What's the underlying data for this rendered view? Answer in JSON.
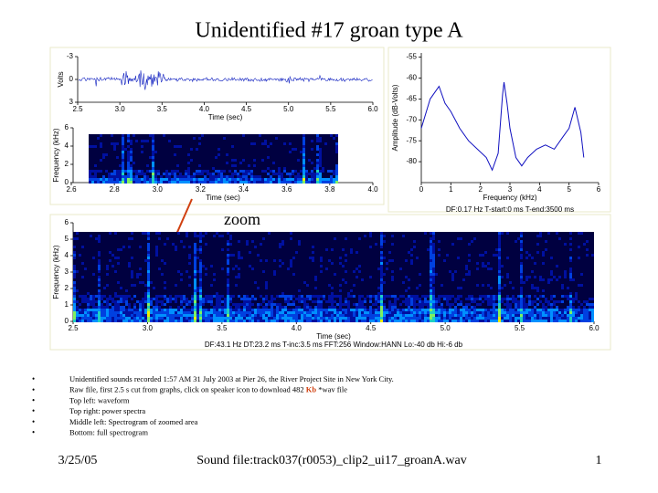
{
  "title": "Unidentified #17 groan type A",
  "waveform": {
    "y_label": "Volts",
    "yticks": [
      "3",
      "0",
      "-3"
    ],
    "x_label": "Time (sec)",
    "xticks": [
      "2.5",
      "3.0",
      "3.5",
      "4.0",
      "4.5",
      "5.0",
      "5.5",
      "6.0"
    ]
  },
  "zoom_spectrogram": {
    "y_label": "Frequency (kHz)",
    "yticks": [
      "0",
      "2",
      "4",
      "6"
    ],
    "x_label": "Time (sec)",
    "xticks": [
      "2.6",
      "2.8",
      "3.0",
      "3.2",
      "3.4",
      "3.6",
      "3.8",
      "4.0"
    ]
  },
  "zoom_label": "zoom",
  "chart_data": {
    "type": "line",
    "x_label": "Frequency (kHz)",
    "y_label": "Amplitude (dB-Volts)",
    "color": "#1010c0",
    "x": [
      0,
      0.3,
      0.6,
      0.8,
      1.0,
      1.3,
      1.6,
      1.9,
      2.2,
      2.4,
      2.6,
      2.75,
      2.8,
      2.9,
      3.0,
      3.2,
      3.4,
      3.6,
      3.9,
      4.2,
      4.5,
      4.8,
      5.0,
      5.2,
      5.4,
      5.5
    ],
    "values": [
      -72,
      -65,
      -62,
      -66,
      -68,
      -72,
      -75,
      -77,
      -79,
      -82,
      -78,
      -64,
      -61,
      -66,
      -72,
      -79,
      -81,
      -79,
      -77,
      -76,
      -77,
      -74,
      -72,
      -67,
      -73,
      -79
    ],
    "xlim": [
      0,
      6
    ],
    "ylim": [
      -85,
      -54
    ],
    "xticks": [
      0,
      1,
      2,
      3,
      4,
      5,
      6
    ],
    "yticks": [
      -55,
      -60,
      -65,
      -70,
      -75,
      -80
    ],
    "info": "DF:0.17 Hz   T-start:0 ms   T-end:3500 ms"
  },
  "full_spectrogram": {
    "y_label": "Frequency (kHz)",
    "yticks": [
      "0",
      "1",
      "2",
      "3",
      "4",
      "5",
      "6"
    ],
    "x_label": "Time (sec)",
    "xticks": [
      "2.5",
      "3.0",
      "3.5",
      "4.0",
      "4.5",
      "5.0",
      "5.5",
      "6.0"
    ],
    "info": "DF:43.1 Hz   DT:23.2 ms   T-inc:3.5 ms   FFT:256   Window:HANN   Lo:-40 db   Hi:-6 db"
  },
  "bullets": [
    [
      "Unidentified sounds recorded 1:57 AM 31 July 2003 at Pier 26, the River Project Site in New York City."
    ],
    [
      "Raw file, first 2.5 s cut from graphs, click on speaker icon to download 482 ",
      "Kb",
      " *wav file"
    ],
    [
      "Top left: waveform"
    ],
    [
      "Top right: power spectra"
    ],
    [
      "Middle left: Spectrogram of zoomed area"
    ],
    [
      "Bottom: full spectrogram"
    ]
  ],
  "footer": {
    "date": "3/25/05",
    "center": "Sound file:track037(r0053)_clip2_ui17_groanA.wav",
    "page": "1"
  }
}
